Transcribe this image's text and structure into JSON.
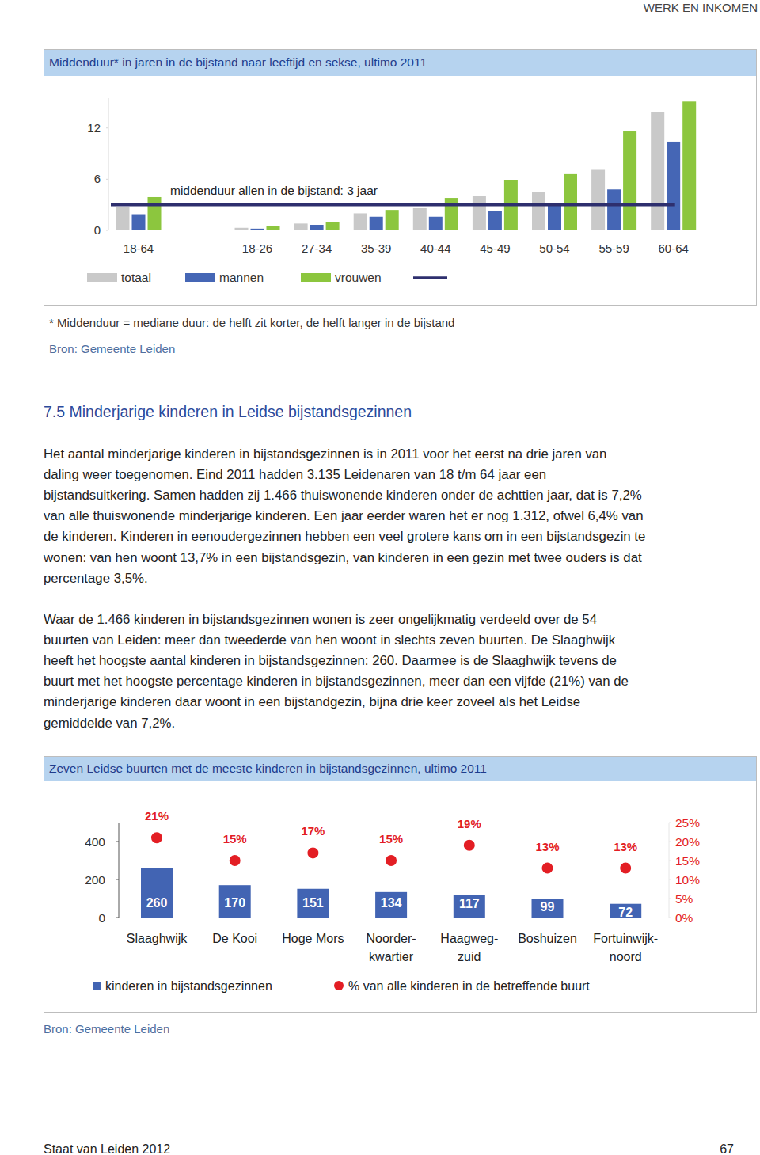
{
  "page": {
    "header": "WERK EN INKOMEN",
    "section_title": "7.5 Minderjarige kinderen in Leidse bijstandsgezinnen",
    "paragraphs": [
      [
        "Het aantal minderjarige kinderen in bijstandsgezinnen is in 2011 voor het eerst na drie jaren van",
        "daling weer toegenomen. Eind 2011 hadden 3.135 Leidenaren van 18 t/m 64 jaar een",
        "bijstandsuitkering. Samen hadden zij 1.466 thuiswonende kinderen onder de achttien jaar, dat is 7,2%",
        "van alle thuiswonende minderjarige kinderen. Een jaar eerder waren het er nog 1.312, ofwel 6,4% van",
        "de kinderen. Kinderen in eenoudergezinnen hebben een veel grotere kans om in een bijstandsgezin te",
        "wonen: van hen woont 13,7% in een bijstandsgezin, van kinderen in een gezin met twee ouders is dat",
        "percentage 3,5%."
      ],
      [
        "Waar de 1.466 kinderen in bijstandsgezinnen wonen is zeer ongelijkmatig verdeeld over de 54",
        "buurten van Leiden: meer dan tweederde van hen woont in slechts zeven buurten. De Slaaghwijk",
        "heeft het hoogste aantal kinderen in bijstandsgezinnen: 260. Daarmee is de Slaaghwijk tevens de",
        "buurt met het hoogste percentage kinderen in bijstandsgezinnen, meer dan een vijfde (21%) van de",
        "minderjarige kinderen daar woont in een bijstandgezin, bijna drie keer zoveel als het Leidse",
        "gemiddelde van 7,2%."
      ]
    ],
    "footer": {
      "left": "Staat van Leiden 2012",
      "page_number": "67"
    }
  },
  "chart_data": [
    {
      "type": "bar",
      "title": "Middenduur* in jaren in de bijstand  naar leeftijd en sekse, ultimo 2011",
      "categories": [
        "18-64",
        "18-26",
        "27-34",
        "35-39",
        "40-44",
        "45-49",
        "50-54",
        "55-59",
        "60-64"
      ],
      "series": [
        {
          "name": "totaal",
          "color": "#c9c9c9",
          "values": [
            2.7,
            0.3,
            0.8,
            2.0,
            2.6,
            4.0,
            4.5,
            7.1,
            13.9
          ]
        },
        {
          "name": "mannen",
          "color": "#4566b5",
          "values": [
            1.9,
            0.2,
            0.65,
            1.6,
            1.6,
            2.3,
            2.9,
            4.8,
            10.4
          ]
        },
        {
          "name": "vrouwen",
          "color": "#8cc63e",
          "values": [
            3.9,
            0.5,
            1.0,
            2.4,
            3.8,
            5.9,
            6.6,
            11.6,
            15.1
          ]
        }
      ],
      "ylim": [
        0,
        15.5
      ],
      "yticks": [
        0,
        6,
        12
      ],
      "grid": false,
      "legend": "bottom",
      "annotations": [
        {
          "text": "middenduur allen in de bijstand: 3 jaar",
          "y": 3,
          "color": "#2e2f6e"
        }
      ],
      "footnote": "* Middenduur = mediane duur: de helft zit korter, de helft langer in de bijstand",
      "source": "Bron: Gemeente Leiden"
    },
    {
      "type": "bar",
      "title": "Zeven Leidse buurten met de meeste kinderen in bijstandsgezinnen, ultimo 2011",
      "categories": [
        "Slaaghwijk",
        "De Kooi",
        "Hoge Mors",
        "Noorder-\nkwartier",
        "Haagweg-\nzuid",
        "Boshuizen",
        "Fortuinwijk-\nnoord"
      ],
      "series": [
        {
          "name": "kinderen in bijstandsgezinnen",
          "type": "bar",
          "color": "#4264b3",
          "values": [
            260,
            170,
            151,
            134,
            117,
            99,
            72
          ]
        },
        {
          "name": "% van alle kinderen in de betreffende buurt",
          "type": "scatter",
          "marker": "circle",
          "color": "#e31e24",
          "axis": "y2",
          "values": [
            21,
            15,
            17,
            15,
            19,
            13,
            13
          ],
          "value_labels": [
            "21%",
            "15%",
            "17%",
            "15%",
            "19%",
            "13%",
            "13%"
          ]
        }
      ],
      "ylim": [
        0,
        500
      ],
      "yticks": [
        0,
        200,
        400
      ],
      "y2lim": [
        0,
        25
      ],
      "y2ticks": [
        {
          "value": 0,
          "label": "0%"
        },
        {
          "value": 5,
          "label": "5%"
        },
        {
          "value": 10,
          "label": "10%"
        },
        {
          "value": 15,
          "label": "15%"
        },
        {
          "value": 20,
          "label": "20%"
        },
        {
          "value": 25,
          "label": "25%"
        }
      ],
      "data_labels": true,
      "grid": false,
      "legend": "bottom",
      "source": "Bron: Gemeente Leiden"
    }
  ]
}
